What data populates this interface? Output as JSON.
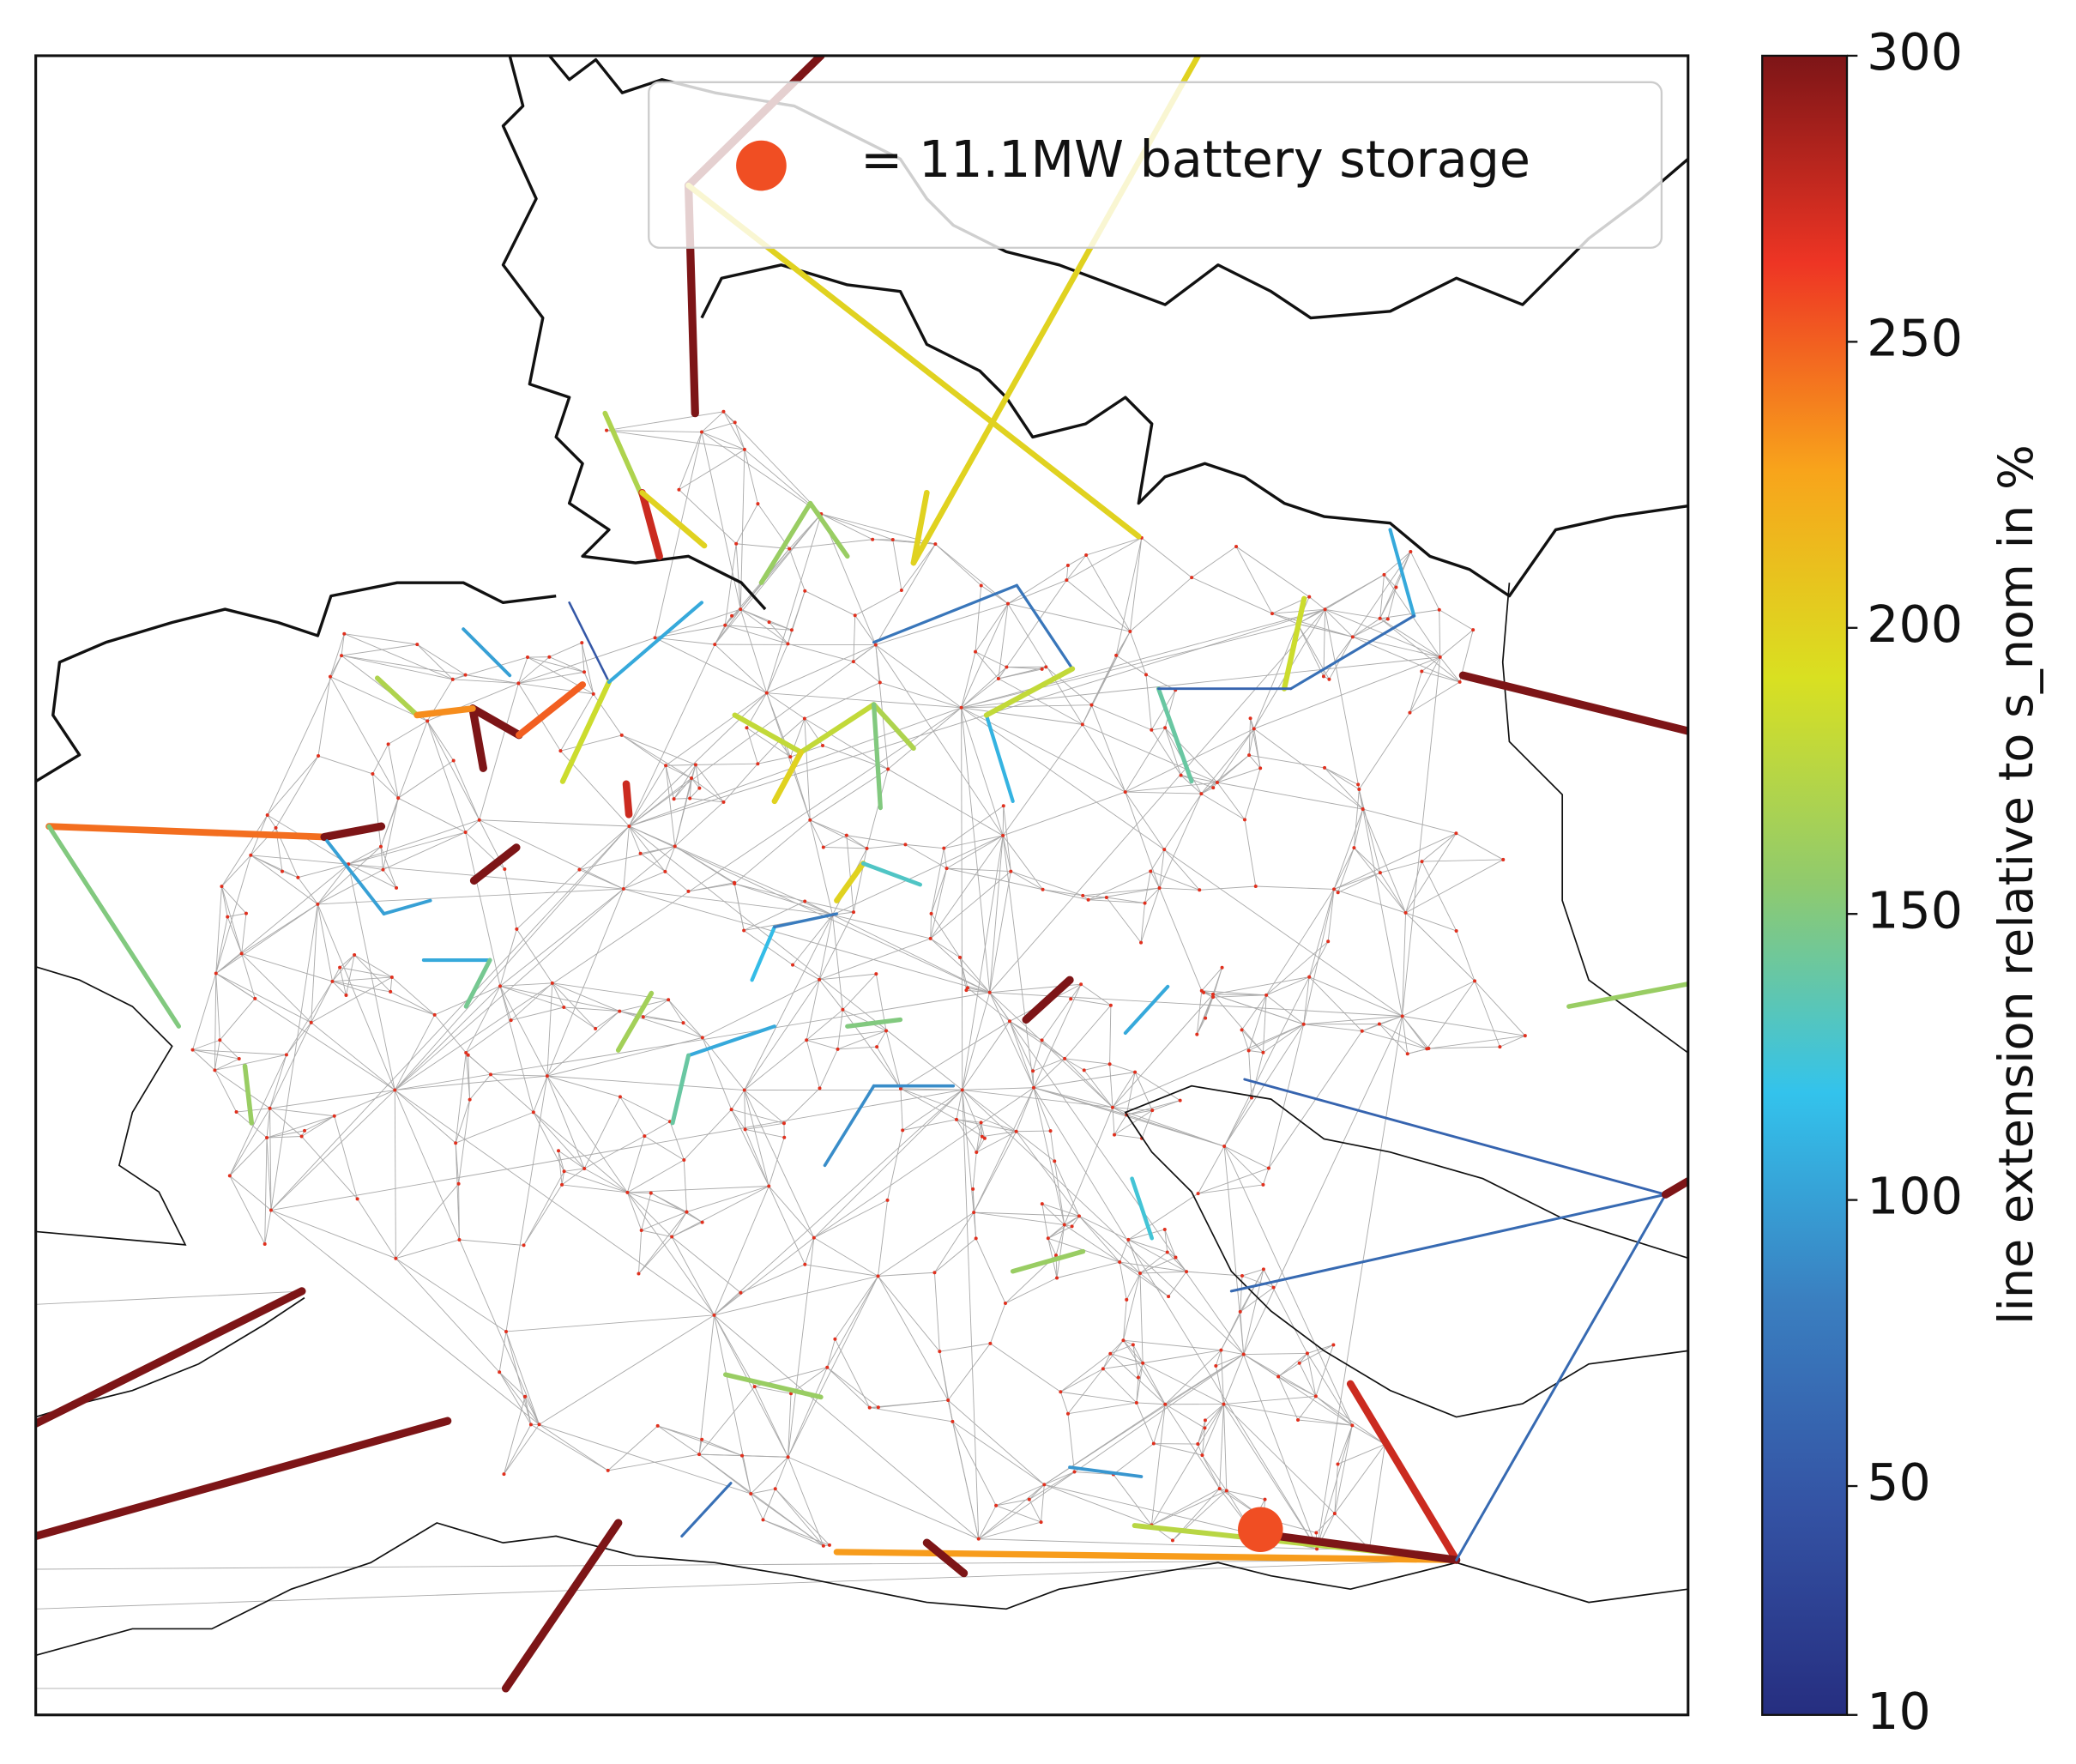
{
  "chart_data": {
    "type": "network-map",
    "legend": {
      "label": "= 11.1MW battery storage",
      "marker_color": "#f04e23"
    },
    "colorbar": {
      "label": "line extension relative to s_nom in %",
      "lim": [
        10,
        300
      ],
      "ticks": [
        10,
        50,
        100,
        150,
        200,
        250,
        300
      ],
      "colormap": [
        "#262e80",
        "#3453a4",
        "#3a7fc0",
        "#33c3ec",
        "#8fca6e",
        "#d9e021",
        "#f8a41b",
        "#ee3524",
        "#7d1517"
      ]
    },
    "line_values": [
      300,
      300,
      200,
      200,
      300,
      300,
      300,
      300,
      275,
      230,
      175,
      300,
      65,
      65,
      60,
      160,
      245,
      300,
      150,
      300,
      300,
      300,
      250,
      170,
      235,
      170,
      275,
      200,
      200,
      300,
      300,
      275,
      160,
      160,
      300,
      160,
      185,
      140,
      105,
      160,
      160,
      180,
      180,
      170,
      200,
      150,
      200,
      130,
      75,
      75,
      110,
      180,
      70,
      60,
      50,
      185,
      105,
      100,
      100,
      100,
      115,
      80,
      105,
      165,
      140,
      90,
      90,
      150,
      105,
      125,
      70,
      95,
      105,
      145
    ]
  }
}
